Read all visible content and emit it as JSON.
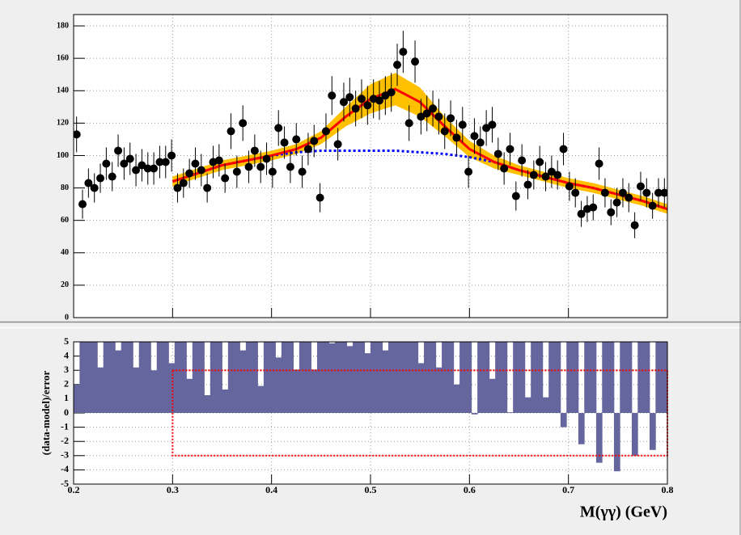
{
  "chart_data": [
    {
      "type": "scatter",
      "x": [
        0.203,
        0.209,
        0.215,
        0.221,
        0.227,
        0.233,
        0.239,
        0.245,
        0.251,
        0.257,
        0.263,
        0.269,
        0.275,
        0.281,
        0.287,
        0.293,
        0.299,
        0.305,
        0.311,
        0.317,
        0.323,
        0.329,
        0.335,
        0.341,
        0.347,
        0.353,
        0.359,
        0.365,
        0.371,
        0.377,
        0.383,
        0.389,
        0.395,
        0.401,
        0.407,
        0.413,
        0.419,
        0.425,
        0.431,
        0.437,
        0.443,
        0.449,
        0.455,
        0.461,
        0.467,
        0.473,
        0.479,
        0.485,
        0.491,
        0.497,
        0.503,
        0.509,
        0.515,
        0.521,
        0.527,
        0.533,
        0.539,
        0.545,
        0.551,
        0.557,
        0.563,
        0.569,
        0.575,
        0.581,
        0.587,
        0.593,
        0.599,
        0.605,
        0.611,
        0.617,
        0.623,
        0.629,
        0.635,
        0.641,
        0.647,
        0.653,
        0.659,
        0.665,
        0.671,
        0.677,
        0.683,
        0.689,
        0.695,
        0.701,
        0.707,
        0.713,
        0.719,
        0.725,
        0.731,
        0.737,
        0.743,
        0.749,
        0.755,
        0.761,
        0.767,
        0.773,
        0.779,
        0.785,
        0.791,
        0.797
      ],
      "values": [
        113,
        70,
        83,
        80,
        86,
        95,
        87,
        103,
        95,
        98,
        91,
        94,
        92,
        92,
        96,
        96,
        100,
        80,
        83,
        89,
        95,
        91,
        80,
        96,
        97,
        86,
        115,
        90,
        120,
        93,
        103,
        93,
        98,
        90,
        117,
        108,
        93,
        110,
        90,
        104,
        109,
        74,
        115,
        137,
        107,
        133,
        136,
        129,
        135,
        131,
        135,
        134,
        137,
        139,
        156,
        164,
        120,
        158,
        124,
        126,
        129,
        124,
        115,
        123,
        111,
        119,
        90,
        112,
        108,
        117,
        119,
        101,
        92,
        104,
        75,
        97,
        82,
        88,
        96,
        87,
        90,
        88,
        104,
        81,
        77,
        64,
        67,
        68,
        95,
        77,
        65,
        71,
        77,
        74,
        57,
        81,
        77,
        69,
        77,
        77
      ],
      "errors": [
        11,
        9,
        9,
        9,
        9,
        10,
        9,
        10,
        10,
        10,
        10,
        10,
        10,
        10,
        10,
        10,
        10,
        9,
        9,
        9,
        10,
        10,
        9,
        10,
        10,
        9,
        11,
        10,
        11,
        10,
        10,
        10,
        10,
        10,
        11,
        10,
        10,
        10,
        10,
        10,
        10,
        9,
        11,
        12,
        10,
        12,
        12,
        11,
        12,
        12,
        12,
        12,
        12,
        12,
        13,
        13,
        11,
        13,
        11,
        11,
        11,
        11,
        11,
        11,
        11,
        11,
        10,
        11,
        10,
        11,
        11,
        10,
        10,
        10,
        9,
        10,
        9,
        9,
        10,
        9,
        10,
        9,
        10,
        9,
        9,
        8,
        8,
        8,
        10,
        9,
        8,
        9,
        9,
        9,
        8,
        9,
        9,
        8,
        9,
        9
      ],
      "color": "#000000",
      "curve_x": [
        0.3,
        0.325,
        0.35,
        0.375,
        0.4,
        0.425,
        0.45,
        0.475,
        0.5,
        0.525,
        0.55,
        0.575,
        0.6,
        0.625,
        0.65,
        0.675,
        0.7,
        0.725,
        0.75,
        0.775,
        0.8
      ],
      "band": {
        "low": [
          81,
          86,
          91,
          94,
          97,
          101,
          107,
          118,
          126,
          131,
          124,
          112,
          99,
          92,
          88,
          84,
          80,
          77,
          73,
          69,
          64
        ],
        "high": [
          87,
          92,
          97,
          100,
          103,
          107,
          115,
          130,
          144,
          151,
          142,
          124,
          109,
          100,
          94,
          90,
          86,
          83,
          79,
          75,
          70
        ],
        "color": "#ffc000"
      },
      "background": {
        "values": [
          84,
          89,
          94,
          97,
          100,
          102,
          103,
          103,
          103,
          103,
          102,
          101,
          99,
          96,
          91,
          87,
          83,
          80,
          76,
          72,
          67
        ],
        "color": "#0000ff"
      },
      "fit": {
        "values": [
          84,
          89,
          94,
          97,
          100,
          104,
          111,
          124,
          135,
          141,
          133,
          118,
          104,
          96,
          91,
          87,
          83,
          80,
          76,
          72,
          67
        ],
        "color": "#ff0000"
      },
      "xlim": [
        0.2,
        0.8
      ],
      "xticks": [
        0.2,
        0.3,
        0.4,
        0.5,
        0.6,
        0.7,
        0.8
      ],
      "ylim": [
        0,
        187
      ],
      "yticks": [
        0,
        20,
        40,
        60,
        80,
        100,
        120,
        140,
        160,
        180
      ],
      "grid": true
    },
    {
      "type": "bar",
      "x": [
        0.203,
        0.209,
        0.215,
        0.221,
        0.227,
        0.233,
        0.239,
        0.245,
        0.251,
        0.257,
        0.263,
        0.269,
        0.275,
        0.281,
        0.287,
        0.293,
        0.299,
        0.305,
        0.311,
        0.317,
        0.323,
        0.329,
        0.335,
        0.341,
        0.347,
        0.353,
        0.359,
        0.365,
        0.371,
        0.377,
        0.383,
        0.389,
        0.395,
        0.401,
        0.407,
        0.413,
        0.419,
        0.425,
        0.431,
        0.437,
        0.443,
        0.449,
        0.455,
        0.461,
        0.467,
        0.473,
        0.479,
        0.485,
        0.491,
        0.497,
        0.503,
        0.509,
        0.515,
        0.521,
        0.527,
        0.533,
        0.539,
        0.545,
        0.551,
        0.557,
        0.563,
        0.569,
        0.575,
        0.581,
        0.587,
        0.593,
        0.599,
        0.605,
        0.611,
        0.617,
        0.623,
        0.629,
        0.635,
        0.641,
        0.647,
        0.653,
        0.659,
        0.665,
        0.671,
        0.677,
        0.683,
        0.689,
        0.695,
        0.701,
        0.707,
        0.713,
        0.719,
        0.725,
        0.731,
        0.737,
        0.743,
        0.749,
        0.755,
        0.761,
        0.767,
        0.773,
        0.779,
        0.785,
        0.791,
        0.797
      ],
      "values": [
        2.0,
        5,
        5,
        5,
        3.2,
        5,
        5,
        4.4,
        5,
        5,
        3.2,
        5,
        5,
        3.0,
        5,
        5,
        3.5,
        5,
        5,
        2.4,
        5,
        5,
        1.25,
        5,
        5,
        1.65,
        5,
        5,
        4.4,
        5,
        5,
        1.9,
        5,
        5,
        3.9,
        5,
        5,
        3.05,
        5,
        5,
        3.05,
        5,
        5,
        4.9,
        5,
        5,
        4.7,
        5,
        5,
        4.2,
        5,
        5,
        4.4,
        5,
        5,
        5,
        5,
        5,
        3.5,
        5,
        5,
        3.2,
        5,
        5,
        2.0,
        5,
        5,
        -0.1,
        5,
        5,
        2.4,
        5,
        5,
        0.05,
        5,
        5,
        1.1,
        5,
        5,
        1.1,
        5,
        5,
        -1.0,
        5,
        5,
        -2.2,
        5,
        5,
        -3.5,
        5,
        5,
        -4.1,
        5,
        5,
        -3.0,
        5,
        5,
        -2.6,
        5,
        5
      ],
      "color": "#66669e",
      "box": {
        "x": [
          0.3,
          0.8
        ],
        "y": [
          -3,
          3
        ],
        "color": "#ff0000"
      },
      "xlabel": "M(γγ) (GeV)",
      "ylabel": "(data-model)/error",
      "xlim": [
        0.2,
        0.8
      ],
      "xticks": [
        0.2,
        0.3,
        0.4,
        0.5,
        0.6,
        0.7,
        0.8
      ],
      "ylim": [
        -5,
        5
      ],
      "yticks": [
        -5,
        -4,
        -3,
        -2,
        -1,
        0,
        1,
        2,
        3,
        4,
        5
      ],
      "grid": true
    }
  ]
}
